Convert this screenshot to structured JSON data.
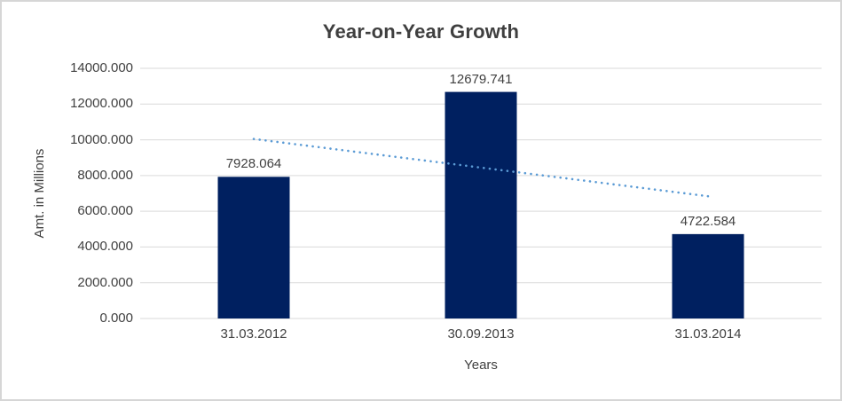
{
  "window": {
    "background": "#ffffff",
    "border_color": "#d6d6d6"
  },
  "chart_data": {
    "type": "bar",
    "title": "Year-on-Year Growth",
    "xlabel": "Years",
    "ylabel": "Amt. in Millions",
    "categories": [
      "31.03.2012",
      "30.09.2013",
      "31.03.2014"
    ],
    "values": [
      7928.064,
      12679.741,
      4722.584
    ],
    "data_labels": [
      "7928.064",
      "12679.741",
      "4722.584"
    ],
    "ylim": [
      0,
      14000
    ],
    "ytick_step": 2000,
    "ytick_labels": [
      "0.000",
      "2000.000",
      "4000.000",
      "6000.000",
      "8000.000",
      "10000.000",
      "12000.000",
      "14000.000"
    ],
    "grid": "horizontal",
    "legend": "none",
    "bar_color": "#002060",
    "gridline_color": "#d9d9d9",
    "text_color": "#404040",
    "trendline": {
      "type": "linear",
      "style": "dotted",
      "color": "#5b9bd5",
      "start_value": 10046.2,
      "end_value": 6840.7
    }
  }
}
